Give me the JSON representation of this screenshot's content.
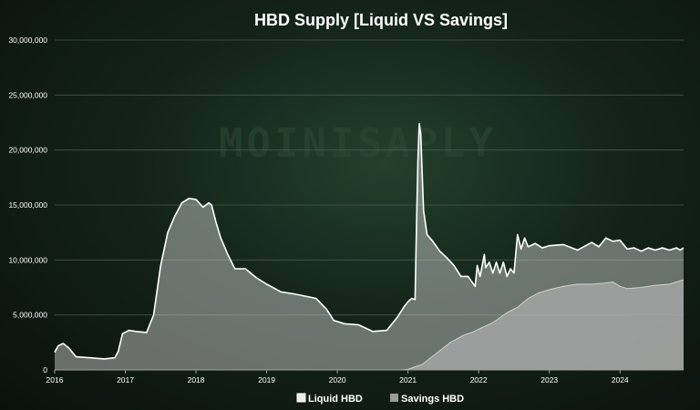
{
  "chart_data": {
    "type": "area",
    "title": "HBD Supply [Liquid VS Savings]",
    "xlabel": "",
    "ylabel": "",
    "x_ticks": [
      "2016",
      "2017",
      "2018",
      "2019",
      "2020",
      "2021",
      "2022",
      "2023",
      "2024"
    ],
    "y_ticks": [
      "0",
      "5,000,000",
      "10,000,000",
      "15,000,000",
      "20,000,000",
      "25,000,000",
      "30,000,000"
    ],
    "xlim": [
      2016.0,
      2024.9
    ],
    "ylim": [
      0,
      30000000
    ],
    "grid": "horizontal",
    "legend": "bottom",
    "series": [
      {
        "name": "Liquid HBD",
        "color": "#d9d9d9",
        "x": [
          2016.0,
          2016.05,
          2016.12,
          2016.2,
          2016.3,
          2016.5,
          2016.7,
          2016.85,
          2016.9,
          2016.96,
          2017.05,
          2017.15,
          2017.3,
          2017.4,
          2017.5,
          2017.6,
          2017.7,
          2017.8,
          2017.9,
          2018.0,
          2018.1,
          2018.18,
          2018.22,
          2018.28,
          2018.35,
          2018.45,
          2018.55,
          2018.7,
          2018.85,
          2019.0,
          2019.2,
          2019.4,
          2019.55,
          2019.7,
          2019.85,
          2019.95,
          2020.1,
          2020.3,
          2020.5,
          2020.7,
          2020.85,
          2020.95,
          2021.0,
          2021.05,
          2021.1,
          2021.12,
          2021.14,
          2021.16,
          2021.18,
          2021.2,
          2021.22,
          2021.27,
          2021.35,
          2021.45,
          2021.55,
          2021.65,
          2021.75,
          2021.85,
          2021.95,
          2021.98,
          2022.02,
          2022.08,
          2022.1,
          2022.15,
          2022.2,
          2022.25,
          2022.3,
          2022.35,
          2022.4,
          2022.45,
          2022.5,
          2022.52,
          2022.55,
          2022.6,
          2022.65,
          2022.7,
          2022.8,
          2022.9,
          2023.0,
          2023.2,
          2023.4,
          2023.6,
          2023.7,
          2023.8,
          2023.9,
          2024.0,
          2024.1,
          2024.2,
          2024.3,
          2024.4,
          2024.5,
          2024.6,
          2024.7,
          2024.8,
          2024.85,
          2024.9
        ],
        "values": [
          1600000,
          2200000,
          2400000,
          2000000,
          1200000,
          1100000,
          1000000,
          1100000,
          1700000,
          3300000,
          3600000,
          3500000,
          3400000,
          5000000,
          9500000,
          12500000,
          14000000,
          15200000,
          15600000,
          15500000,
          14800000,
          15200000,
          15000000,
          13500000,
          12000000,
          10500000,
          9200000,
          9200000,
          8400000,
          7800000,
          7100000,
          6900000,
          6700000,
          6500000,
          5500000,
          4500000,
          4200000,
          4100000,
          3500000,
          3600000,
          4800000,
          5800000,
          6200000,
          6500000,
          6400000,
          13000000,
          19000000,
          22400000,
          21500000,
          18000000,
          14500000,
          12300000,
          11700000,
          10800000,
          10200000,
          9500000,
          8500000,
          8500000,
          7600000,
          9500000,
          8500000,
          10500000,
          9300000,
          9800000,
          8800000,
          9800000,
          8800000,
          9800000,
          8500000,
          9200000,
          8800000,
          10200000,
          12300000,
          11000000,
          12000000,
          11200000,
          11500000,
          11100000,
          11300000,
          11400000,
          10900000,
          11600000,
          11200000,
          12000000,
          11700000,
          11800000,
          11000000,
          11100000,
          10800000,
          11100000,
          10900000,
          11100000,
          10900000,
          11100000,
          10900000,
          11100000
        ]
      },
      {
        "name": "Savings HBD",
        "color": "#a6a8a6",
        "x": [
          2016.0,
          2020.5,
          2020.9,
          2021.0,
          2021.2,
          2021.4,
          2021.6,
          2021.8,
          2021.9,
          2022.0,
          2022.2,
          2022.4,
          2022.55,
          2022.7,
          2022.85,
          2023.0,
          2023.2,
          2023.4,
          2023.6,
          2023.8,
          2023.9,
          2024.0,
          2024.1,
          2024.3,
          2024.5,
          2024.7,
          2024.85,
          2024.9
        ],
        "values": [
          0,
          0,
          0,
          50000,
          500000,
          1500000,
          2500000,
          3200000,
          3400000,
          3700000,
          4300000,
          5200000,
          5700000,
          6500000,
          7000000,
          7300000,
          7600000,
          7800000,
          7800000,
          7900000,
          8000000,
          7600000,
          7400000,
          7500000,
          7700000,
          7800000,
          8100000,
          8200000
        ]
      }
    ]
  }
}
